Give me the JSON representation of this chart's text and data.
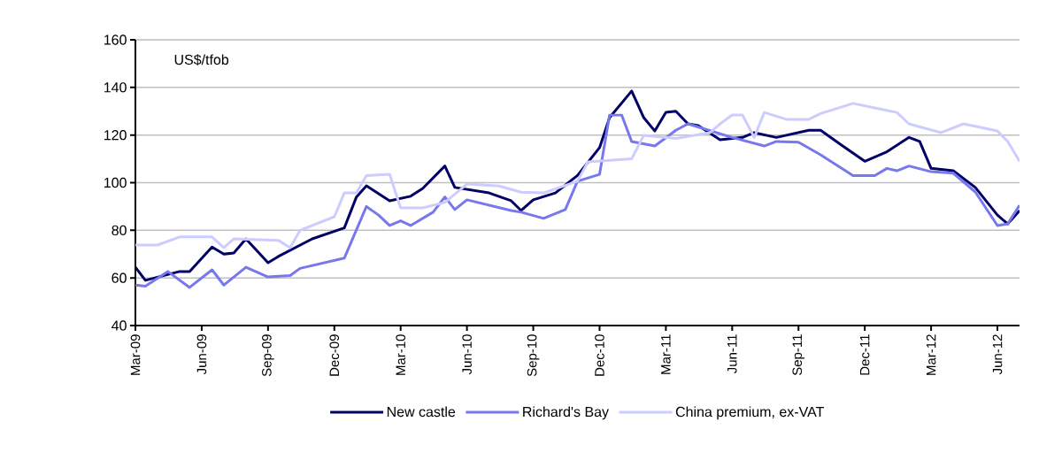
{
  "chart_data": {
    "type": "line",
    "ylabel": "US$/tfob",
    "xlim": [
      "2009-03-01",
      "2012-07-01"
    ],
    "ylim": [
      40,
      160
    ],
    "yticks": [
      40,
      60,
      80,
      100,
      120,
      140,
      160
    ],
    "xticks": [
      {
        "value": "2009-03-01",
        "label": "Mar-09"
      },
      {
        "value": "2009-06-01",
        "label": "Jun-09"
      },
      {
        "value": "2009-09-01",
        "label": "Sep-09"
      },
      {
        "value": "2009-12-01",
        "label": "Dec-09"
      },
      {
        "value": "2010-03-01",
        "label": "Mar-10"
      },
      {
        "value": "2010-06-01",
        "label": "Jun-10"
      },
      {
        "value": "2010-09-01",
        "label": "Sep-10"
      },
      {
        "value": "2010-12-01",
        "label": "Dec-10"
      },
      {
        "value": "2011-03-01",
        "label": "Mar-11"
      },
      {
        "value": "2011-06-01",
        "label": "Jun-11"
      },
      {
        "value": "2011-09-01",
        "label": "Sep-11"
      },
      {
        "value": "2011-12-01",
        "label": "Dec-11"
      },
      {
        "value": "2012-03-01",
        "label": "Mar-12"
      },
      {
        "value": "2012-06-01",
        "label": "Jun-12"
      }
    ],
    "grid": "y",
    "legend": "bottom",
    "marker": "none",
    "line_style": "solid",
    "series": [
      {
        "name": "New castle",
        "color": "#000066",
        "x": [
          "2009-03-01",
          "2009-03-15",
          "2009-05-01",
          "2009-05-15",
          "2009-06-15",
          "2009-07-01",
          "2009-07-15",
          "2009-08-01",
          "2009-09-01",
          "2009-09-15",
          "2009-11-01",
          "2009-12-15",
          "2010-01-01",
          "2010-01-15",
          "2010-02-15",
          "2010-03-15",
          "2010-04-01",
          "2010-05-01",
          "2010-05-15",
          "2010-07-01",
          "2010-08-01",
          "2010-08-15",
          "2010-09-01",
          "2010-10-01",
          "2010-11-01",
          "2010-12-01",
          "2010-12-15",
          "2011-01-15",
          "2011-02-01",
          "2011-02-15",
          "2011-03-01",
          "2011-03-15",
          "2011-04-01",
          "2011-04-15",
          "2011-05-15",
          "2011-06-15",
          "2011-07-01",
          "2011-08-01",
          "2011-09-15",
          "2011-10-01",
          "2011-11-01",
          "2011-12-01",
          "2012-01-01",
          "2012-02-01",
          "2012-02-15",
          "2012-03-01",
          "2012-04-01",
          "2012-05-01",
          "2012-06-01",
          "2012-06-15",
          "2012-07-01"
        ],
        "values": [
          64.5,
          59,
          62.7,
          62.7,
          73,
          70,
          70.5,
          76.4,
          66.4,
          69,
          76.4,
          81,
          94,
          98.7,
          92.4,
          94.3,
          97.6,
          107,
          98,
          95.7,
          92.4,
          88.3,
          92.8,
          95.7,
          103,
          114.7,
          127.3,
          138.5,
          127.3,
          121.7,
          129.5,
          130,
          124.7,
          124,
          118,
          119,
          121,
          119,
          122,
          122,
          115.4,
          109,
          113,
          119,
          117.3,
          106,
          105,
          98,
          86.4,
          82.7,
          88.3
        ]
      },
      {
        "name": "Richard's Bay",
        "color": "#7777ee",
        "x": [
          "2009-03-01",
          "2009-03-15",
          "2009-04-15",
          "2009-05-15",
          "2009-06-15",
          "2009-07-01",
          "2009-08-01",
          "2009-09-01",
          "2009-10-01",
          "2009-10-15",
          "2009-12-15",
          "2010-01-15",
          "2010-02-01",
          "2010-02-15",
          "2010-03-01",
          "2010-03-15",
          "2010-04-15",
          "2010-05-01",
          "2010-05-15",
          "2010-06-01",
          "2010-08-01",
          "2010-08-15",
          "2010-09-15",
          "2010-10-15",
          "2010-11-01",
          "2010-12-01",
          "2010-12-15",
          "2011-01-01",
          "2011-01-15",
          "2011-02-15",
          "2011-03-15",
          "2011-04-01",
          "2011-06-01",
          "2011-07-15",
          "2011-08-01",
          "2011-09-01",
          "2011-10-01",
          "2011-11-15",
          "2011-12-15",
          "2012-01-01",
          "2012-01-15",
          "2012-02-01",
          "2012-03-01",
          "2012-04-01",
          "2012-05-01",
          "2012-06-01",
          "2012-06-15",
          "2012-07-01"
        ],
        "values": [
          57,
          56.5,
          62.7,
          56,
          63.4,
          57,
          64.5,
          60.4,
          61,
          64,
          68.3,
          90,
          86.4,
          82,
          84,
          82,
          87.6,
          94,
          88.7,
          92.8,
          88.3,
          87.6,
          85,
          88.7,
          100.6,
          103.5,
          128.4,
          128.4,
          117.3,
          115.4,
          122,
          124.7,
          119,
          115.4,
          117.3,
          117,
          111.7,
          103,
          103,
          106,
          105,
          107,
          104.6,
          104,
          96.1,
          82,
          82.7,
          90.5
        ]
      },
      {
        "name": "China premium, ex-VAT",
        "color": "#ccccff",
        "x": [
          "2009-03-01",
          "2009-04-01",
          "2009-05-01",
          "2009-06-15",
          "2009-07-01",
          "2009-07-15",
          "2009-09-15",
          "2009-10-01",
          "2009-10-15",
          "2009-12-01",
          "2009-12-15",
          "2010-01-01",
          "2010-01-15",
          "2010-02-15",
          "2010-03-01",
          "2010-04-01",
          "2010-05-01",
          "2010-06-01",
          "2010-07-15",
          "2010-08-15",
          "2010-09-15",
          "2010-11-01",
          "2010-11-15",
          "2011-01-15",
          "2011-02-01",
          "2011-03-15",
          "2011-05-01",
          "2011-05-15",
          "2011-06-01",
          "2011-06-15",
          "2011-07-01",
          "2011-07-15",
          "2011-08-15",
          "2011-09-15",
          "2011-10-01",
          "2011-11-15",
          "2011-12-15",
          "2012-01-15",
          "2012-02-01",
          "2012-03-15",
          "2012-04-15",
          "2012-06-01",
          "2012-06-15",
          "2012-07-01"
        ],
        "values": [
          73.8,
          73.8,
          77.2,
          77.2,
          72.7,
          76.4,
          75.8,
          72.7,
          80,
          85.7,
          95.7,
          95.7,
          103,
          103.5,
          89.4,
          89.4,
          91.7,
          99.4,
          98.6,
          96,
          95.7,
          100.6,
          108.7,
          110,
          119.9,
          118.6,
          121,
          124.7,
          128.4,
          128.4,
          119,
          129.5,
          126.6,
          126.6,
          129,
          133.3,
          131.4,
          129.5,
          124.7,
          121,
          124.7,
          121.7,
          117.3,
          109
        ]
      }
    ]
  }
}
